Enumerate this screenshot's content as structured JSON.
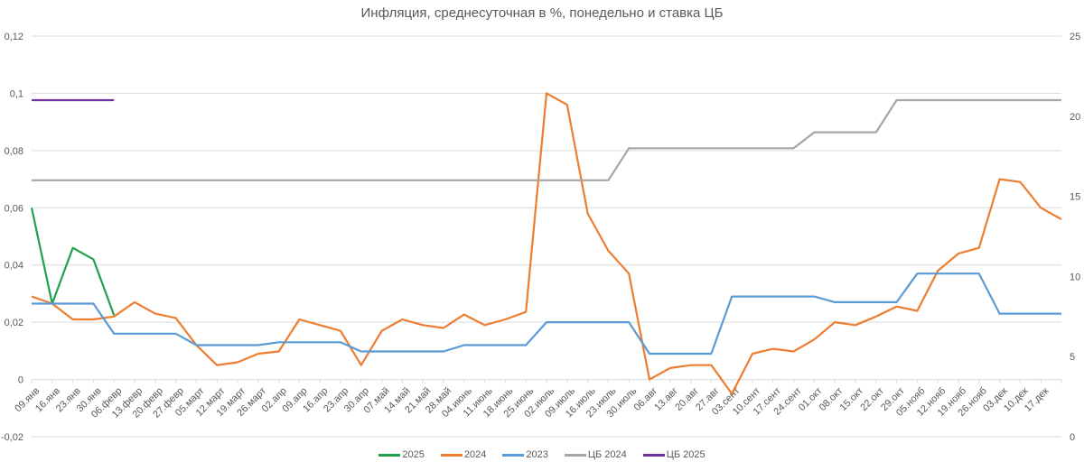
{
  "chart_data": {
    "type": "line",
    "title": "Инфляция, среднесуточная в %, понедельно и ставка ЦБ",
    "xlabel": "",
    "ylabel": "",
    "y2label": "",
    "ylim": [
      -0.02,
      0.12
    ],
    "y_ticks": [
      "0,12",
      "0,1",
      "0,08",
      "0,06",
      "0,04",
      "0,02",
      "0",
      "-0,02"
    ],
    "y_tick_values": [
      0.12,
      0.1,
      0.08,
      0.06,
      0.04,
      0.02,
      0,
      -0.02
    ],
    "y2lim": [
      0,
      25
    ],
    "y2_ticks": [
      "25",
      "20",
      "15",
      "10",
      "5",
      "0"
    ],
    "y2_tick_values": [
      25,
      20,
      15,
      10,
      5,
      0
    ],
    "grid": true,
    "legend_position": "bottom",
    "categories": [
      "09.янв",
      "16.янв",
      "23.янв",
      "30.янв",
      "06.февр",
      "13.февр",
      "20.февр",
      "27.февр",
      "05.март",
      "12.март",
      "19.март",
      "26.март",
      "02.апр",
      "09.апр",
      "16.апр",
      "23.апр",
      "30.апр",
      "07.май",
      "14.май",
      "21.май",
      "28.май",
      "04.июнь",
      "11.июнь",
      "18.июнь",
      "25.июнь",
      "02.июль",
      "09.июль",
      "16.июль",
      "23.июль",
      "30.июль",
      "06.авг",
      "13.авг",
      "20.авг",
      "27.авг",
      "03.сент",
      "10.сент",
      "17.сент",
      "24.сент",
      "01.окт",
      "08.окт",
      "15.окт",
      "22.окт",
      "29.окт",
      "05.нояб",
      "12.нояб",
      "19.нояб",
      "26.нояб",
      "03.дек",
      "10.дек",
      "17.дек",
      ""
    ],
    "series": [
      {
        "name": "2025",
        "axis": "left",
        "color": "#1fa14a",
        "values": [
          0.06,
          0.0265,
          0.046,
          0.042,
          0.0225
        ]
      },
      {
        "name": "2024",
        "axis": "left",
        "color": "#ed7d31",
        "values": [
          0.029,
          0.0265,
          0.021,
          0.021,
          0.022,
          0.027,
          0.023,
          0.0215,
          0.012,
          0.005,
          0.006,
          0.009,
          0.0098,
          0.021,
          0.019,
          0.017,
          0.005,
          0.017,
          0.021,
          0.019,
          0.018,
          0.0227,
          0.019,
          0.021,
          0.0236,
          0.1,
          0.096,
          0.058,
          0.045,
          0.037,
          0.0,
          0.004,
          0.005,
          0.005,
          -0.005,
          0.009,
          0.0107,
          0.0098,
          0.014,
          0.02,
          0.019,
          0.022,
          0.0255,
          0.024,
          0.038,
          0.044,
          0.046,
          0.07,
          0.069,
          0.06,
          0.056
        ]
      },
      {
        "name": "2023",
        "axis": "left",
        "color": "#5b9bd5",
        "values": [
          0.0265,
          0.0265,
          0.0265,
          0.0265,
          0.016,
          0.016,
          0.016,
          0.016,
          0.012,
          0.012,
          0.012,
          0.012,
          0.013,
          0.013,
          0.013,
          0.013,
          0.0098,
          0.0098,
          0.0098,
          0.0098,
          0.0098,
          0.012,
          0.012,
          0.012,
          0.012,
          0.02,
          0.02,
          0.02,
          0.02,
          0.02,
          0.009,
          0.009,
          0.009,
          0.009,
          0.029,
          0.029,
          0.029,
          0.029,
          0.029,
          0.027,
          0.027,
          0.027,
          0.027,
          0.037,
          0.037,
          0.037,
          0.037,
          0.023,
          0.023,
          0.023,
          0.023
        ]
      },
      {
        "name": "ЦБ 2024",
        "axis": "right",
        "color": "#a5a5a5",
        "values": [
          16,
          16,
          16,
          16,
          16,
          16,
          16,
          16,
          16,
          16,
          16,
          16,
          16,
          16,
          16,
          16,
          16,
          16,
          16,
          16,
          16,
          16,
          16,
          16,
          16,
          16,
          16,
          16,
          16,
          18,
          18,
          18,
          18,
          18,
          18,
          18,
          18,
          18,
          19,
          19,
          19,
          19,
          21,
          21,
          21,
          21,
          21,
          21,
          21,
          21,
          21
        ]
      },
      {
        "name": "ЦБ 2025",
        "axis": "right",
        "color": "#7030a0",
        "values": [
          21,
          21,
          21,
          21,
          21
        ]
      }
    ]
  }
}
